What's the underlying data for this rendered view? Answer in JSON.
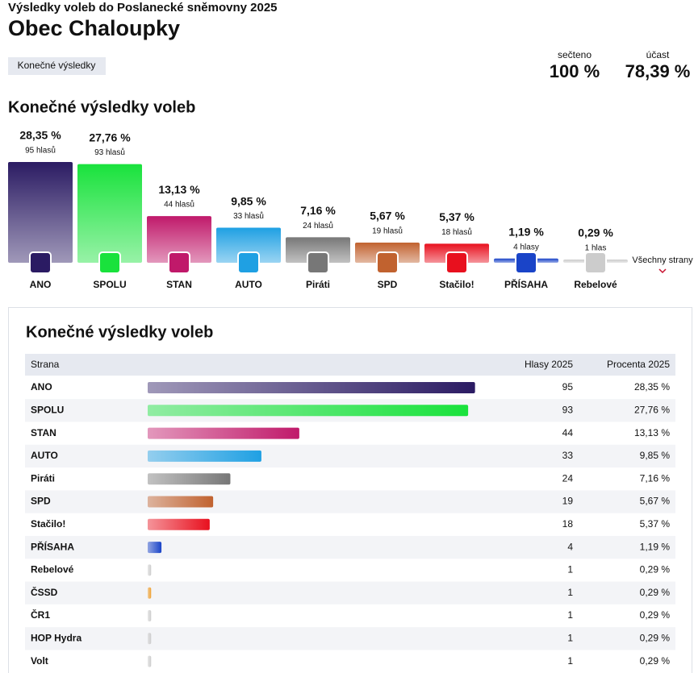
{
  "header": {
    "supertitle": "Výsledky voleb do Poslanecké sněmovny 2025",
    "title": "Obec Chaloupky",
    "tab": "Konečné výsledky",
    "counted_label": "sečteno",
    "counted": "100 %",
    "turnout_label": "účast",
    "turnout": "78,39 %"
  },
  "chart_data": {
    "type": "bar",
    "title": "Konečné výsledky voleb",
    "categories": [
      "ANO",
      "SPOLU",
      "STAN",
      "AUTO",
      "Piráti",
      "SPD",
      "Stačilo!",
      "PŘÍSAHA",
      "Rebelové"
    ],
    "values": [
      28.35,
      27.76,
      13.13,
      9.85,
      7.16,
      5.67,
      5.37,
      1.19,
      0.29
    ],
    "value_labels": [
      "28,35 %",
      "27,76 %",
      "13,13 %",
      "9,85 %",
      "7,16 %",
      "5,67 %",
      "5,37 %",
      "1,19 %",
      "0,29 %"
    ],
    "votes_labels": [
      "95 hlasů",
      "93 hlasů",
      "44 hlasů",
      "33 hlasů",
      "24 hlasů",
      "19 hlasů",
      "18 hlasů",
      "4 hlasy",
      "1 hlas"
    ],
    "colors": [
      "#2b1b63",
      "#19e23c",
      "#c0196a",
      "#1fa0e3",
      "#777777",
      "#c1622f",
      "#e8101e",
      "#1a44c8",
      "#cccccc"
    ],
    "more_link": "Všechny strany"
  },
  "table": {
    "title": "Konečné výsledky voleb",
    "columns": [
      "Strana",
      "Hlasy 2025",
      "Procenta 2025"
    ],
    "rows": [
      {
        "party": "ANO",
        "votes": 95,
        "percent": "28,35 %",
        "color": "#2b1b63"
      },
      {
        "party": "SPOLU",
        "votes": 93,
        "percent": "27,76 %",
        "color": "#19e23c"
      },
      {
        "party": "STAN",
        "votes": 44,
        "percent": "13,13 %",
        "color": "#c0196a"
      },
      {
        "party": "AUTO",
        "votes": 33,
        "percent": "9,85 %",
        "color": "#1fa0e3"
      },
      {
        "party": "Piráti",
        "votes": 24,
        "percent": "7,16 %",
        "color": "#777777"
      },
      {
        "party": "SPD",
        "votes": 19,
        "percent": "5,67 %",
        "color": "#c1622f"
      },
      {
        "party": "Stačilo!",
        "votes": 18,
        "percent": "5,37 %",
        "color": "#e8101e"
      },
      {
        "party": "PŘÍSAHA",
        "votes": 4,
        "percent": "1,19 %",
        "color": "#1a44c8"
      },
      {
        "party": "Rebelové",
        "votes": 1,
        "percent": "0,29 %",
        "color": "#cccccc"
      },
      {
        "party": "ČSSD",
        "votes": 1,
        "percent": "0,29 %",
        "color": "#f0a030"
      },
      {
        "party": "ČR1",
        "votes": 1,
        "percent": "0,29 %",
        "color": "#cccccc"
      },
      {
        "party": "HOP Hydra",
        "votes": 1,
        "percent": "0,29 %",
        "color": "#cccccc"
      },
      {
        "party": "Volt",
        "votes": 1,
        "percent": "0,29 %",
        "color": "#cccccc"
      }
    ]
  }
}
